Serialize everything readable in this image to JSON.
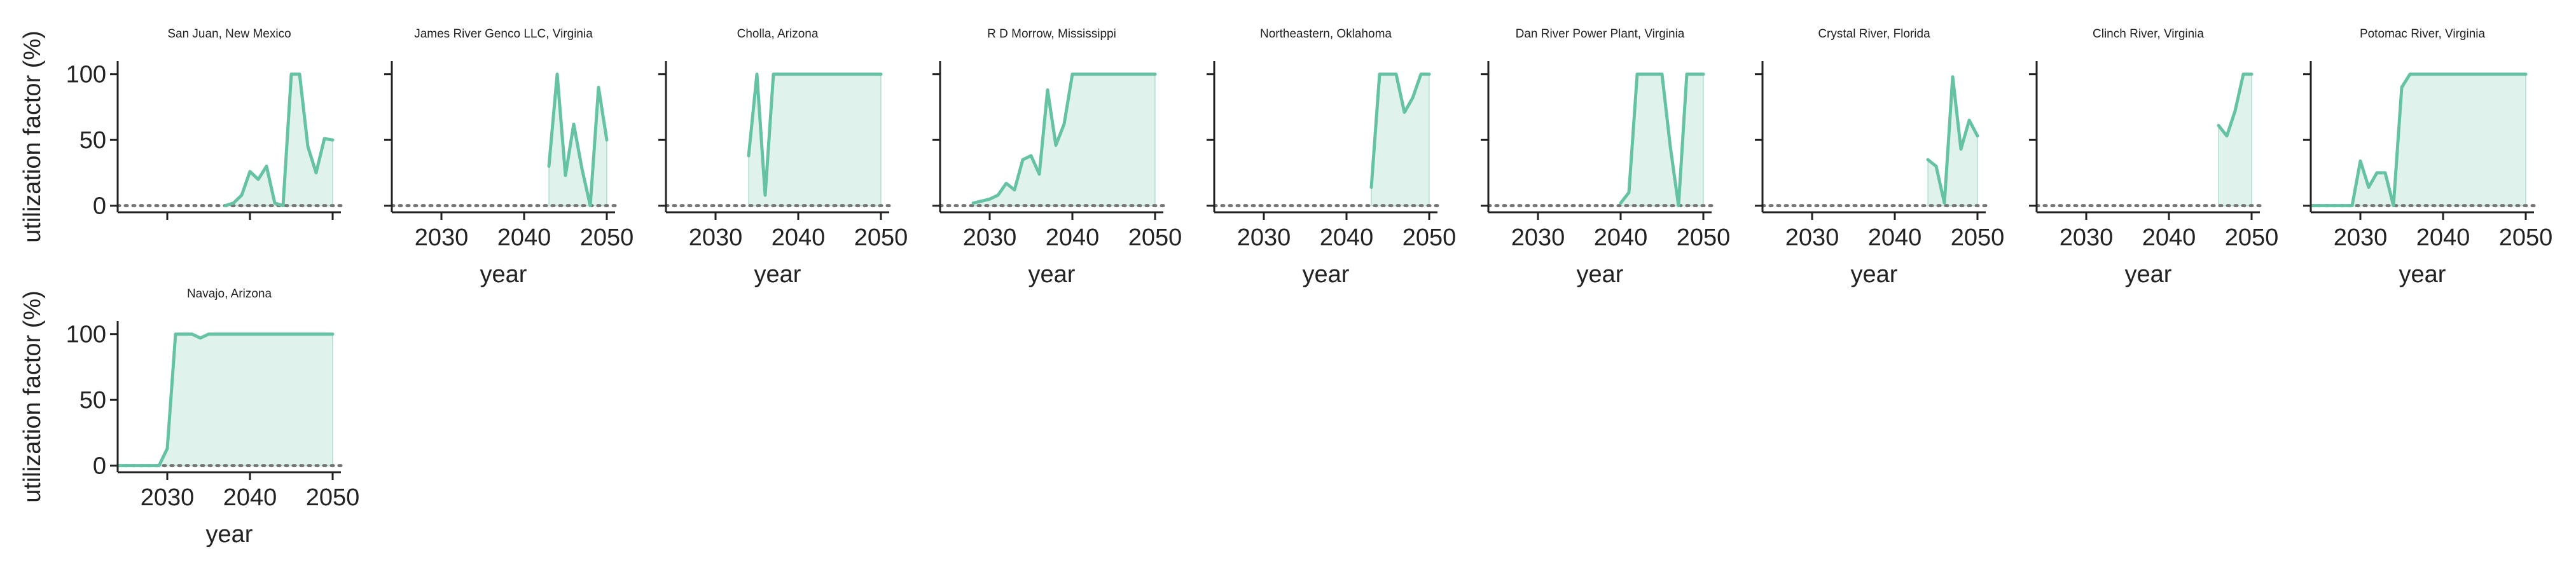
{
  "colors": {
    "line": "#66c2a5",
    "fill": "#dff3ec",
    "zero_line": "#777777",
    "axis": "#222222"
  },
  "chart_data": {
    "type": "line",
    "layout": "small-multiples",
    "xlabel": "year",
    "ylabel": "utilization factor (%)",
    "xlim": [
      2024,
      2051
    ],
    "ylim": [
      -5,
      110
    ],
    "xticks": [
      2030,
      2040,
      2050
    ],
    "xtick_labels": [
      "2030",
      "2040",
      "2050"
    ],
    "yticks": [
      0,
      50,
      100
    ],
    "ytick_labels": [
      "0",
      "50",
      "100"
    ],
    "zero_reference_line": "dotted",
    "grid": false,
    "legend": "none",
    "panels": [
      {
        "title": "San Juan, New Mexico",
        "x": [
          2037,
          2038,
          2039,
          2040,
          2041,
          2042,
          2043,
          2044,
          2045,
          2046,
          2047,
          2048,
          2049,
          2050
        ],
        "y": [
          0,
          2,
          8,
          26,
          20,
          30,
          2,
          0,
          100,
          100,
          45,
          25,
          51,
          50
        ]
      },
      {
        "title": "James River Genco LLC, Virginia",
        "x": [
          2043,
          2044,
          2045,
          2046,
          2047,
          2048,
          2049,
          2050
        ],
        "y": [
          30,
          100,
          23,
          62,
          28,
          0,
          90,
          50
        ]
      },
      {
        "title": "Cholla, Arizona",
        "x": [
          2034,
          2035,
          2036,
          2037,
          2038,
          2040,
          2045,
          2050
        ],
        "y": [
          38,
          100,
          8,
          100,
          100,
          100,
          100,
          100
        ]
      },
      {
        "title": "R D Morrow, Mississippi",
        "x": [
          2028,
          2030,
          2031,
          2032,
          2033,
          2034,
          2035,
          2036,
          2037,
          2038,
          2039,
          2040,
          2045,
          2050
        ],
        "y": [
          2,
          5,
          8,
          17,
          12,
          35,
          38,
          24,
          88,
          46,
          62,
          100,
          100,
          100
        ]
      },
      {
        "title": "Northeastern, Oklahoma",
        "x": [
          2043,
          2044,
          2045,
          2046,
          2047,
          2048,
          2049,
          2050
        ],
        "y": [
          14,
          100,
          100,
          100,
          71,
          82,
          100,
          100
        ]
      },
      {
        "title": "Dan River Power Plant, Virginia",
        "x": [
          2040,
          2041,
          2042,
          2043,
          2044,
          2045,
          2046,
          2047,
          2048,
          2049,
          2050
        ],
        "y": [
          2,
          10,
          100,
          100,
          100,
          100,
          45,
          0,
          100,
          100,
          100
        ]
      },
      {
        "title": "Crystal River, Florida",
        "x": [
          2044,
          2045,
          2046,
          2047,
          2048,
          2049,
          2050
        ],
        "y": [
          35,
          30,
          2,
          98,
          43,
          65,
          53
        ]
      },
      {
        "title": "Clinch River, Virginia",
        "x": [
          2046,
          2047,
          2048,
          2049,
          2050
        ],
        "y": [
          61,
          53,
          72,
          100,
          100
        ]
      },
      {
        "title": "Potomac River, Virginia",
        "x": [
          2024,
          2025,
          2026,
          2027,
          2028,
          2029,
          2030,
          2031,
          2032,
          2033,
          2034,
          2035,
          2036,
          2040,
          2045,
          2050
        ],
        "y": [
          0,
          0,
          0,
          0,
          0,
          0,
          34,
          14,
          25,
          25,
          0,
          90,
          100,
          100,
          100,
          100
        ]
      },
      {
        "title": "Navajo, Arizona",
        "x": [
          2024,
          2025,
          2026,
          2027,
          2028,
          2029,
          2030,
          2031,
          2032,
          2033,
          2034,
          2035,
          2036,
          2040,
          2045,
          2050
        ],
        "y": [
          0,
          0,
          0,
          0,
          0,
          0,
          13,
          100,
          100,
          100,
          97,
          100,
          100,
          100,
          100,
          100
        ]
      }
    ]
  }
}
